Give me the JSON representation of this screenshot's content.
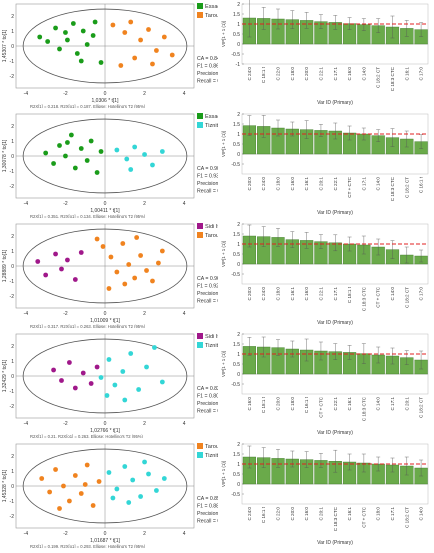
{
  "rows": [
    {
      "score": {
        "legend": [
          {
            "label": "Essaouira",
            "color": "#1a9c1a"
          },
          {
            "label": "Taroudante",
            "color": "#f0831f"
          }
        ],
        "xlabel": "1,0306 * t[1]",
        "ylabel": "1,45307 * to[1]",
        "footer": "R2X[1] = 0,218, R2X[o1] = 0,187, Ellipse: Hotelling's T2 (95%)",
        "metrics": [
          "CA = 0.84",
          "F1 = 0.86",
          "Precision = 0.83",
          "Recall = 0.90"
        ],
        "points": [
          {
            "g": 0,
            "x": -3.3,
            "y": 0.6
          },
          {
            "g": 0,
            "x": -2.9,
            "y": 0.3
          },
          {
            "g": 0,
            "x": -2.5,
            "y": 1.2
          },
          {
            "g": 0,
            "x": -2.3,
            "y": -0.2
          },
          {
            "g": 0,
            "x": -2.0,
            "y": 0.9
          },
          {
            "g": 0,
            "x": -1.9,
            "y": 0.4
          },
          {
            "g": 0,
            "x": -1.6,
            "y": 1.5
          },
          {
            "g": 0,
            "x": -1.4,
            "y": -0.5
          },
          {
            "g": 0,
            "x": -1.1,
            "y": 1.0
          },
          {
            "g": 0,
            "x": -0.9,
            "y": 0.1
          },
          {
            "g": 0,
            "x": -0.5,
            "y": 1.6
          },
          {
            "g": 0,
            "x": -0.2,
            "y": -1.1
          },
          {
            "g": 0,
            "x": -0.6,
            "y": 0.7
          },
          {
            "g": 0,
            "x": -1.2,
            "y": -1.0
          },
          {
            "g": 1,
            "x": 0.4,
            "y": 1.4
          },
          {
            "g": 1,
            "x": 1.0,
            "y": 0.9
          },
          {
            "g": 1,
            "x": 1.3,
            "y": 1.6
          },
          {
            "g": 1,
            "x": 1.8,
            "y": 0.4
          },
          {
            "g": 1,
            "x": 2.2,
            "y": 1.1
          },
          {
            "g": 1,
            "x": 2.6,
            "y": -0.3
          },
          {
            "g": 1,
            "x": 3.0,
            "y": 0.6
          },
          {
            "g": 1,
            "x": 1.5,
            "y": -0.8
          },
          {
            "g": 1,
            "x": 2.4,
            "y": -1.2
          },
          {
            "g": 1,
            "x": 3.4,
            "y": -0.6
          },
          {
            "g": 1,
            "x": 0.8,
            "y": -1.3
          }
        ]
      },
      "vip": {
        "ylabel": "VIP[1 + 1 (1)]",
        "xlabel": "Var ID (Primary)",
        "categories": [
          "C 24:0",
          "C 18:1 t",
          "C 22:0",
          "C 18:0",
          "C 20:0",
          "C 22:1",
          "C 17:1",
          "C 16:0",
          "C 14:0",
          "C 18:2 CT",
          "C 18:3 CTC",
          "C 16:1",
          "C 17:0"
        ],
        "values": [
          1.3,
          1.28,
          1.25,
          1.22,
          1.18,
          1.12,
          1.08,
          1.02,
          0.97,
          0.92,
          0.85,
          0.78,
          0.72
        ],
        "errors": [
          0.95,
          0.55,
          0.5,
          0.45,
          0.4,
          0.35,
          0.35,
          0.3,
          0.3,
          0.35,
          0.55,
          0.4,
          0.35
        ],
        "yticks": [
          "2",
          "1.5",
          "1",
          "0.5",
          "0",
          "-0.5",
          "-1"
        ]
      }
    },
    {
      "score": {
        "legend": [
          {
            "label": "Essaouira",
            "color": "#1a9c1a"
          },
          {
            "label": "Tiznite",
            "color": "#33d6d6"
          }
        ],
        "xlabel": "1,00411 * t[1]",
        "ylabel": "1,30078 * to[1]",
        "footer": "R2X[1] = 0,351, R2X[o1] = 0,134, Ellipse: Hotelling's T2 (95%)",
        "metrics": [
          "CA = 0.90",
          "F1 = 0.93",
          "Precision = 0.91",
          "Recall = 0.95"
        ],
        "points": [
          {
            "g": 0,
            "x": -3.0,
            "y": 0.2
          },
          {
            "g": 0,
            "x": -2.6,
            "y": -0.5
          },
          {
            "g": 0,
            "x": -2.3,
            "y": 0.7
          },
          {
            "g": 0,
            "x": -2.0,
            "y": 0.0
          },
          {
            "g": 0,
            "x": -1.7,
            "y": 1.4
          },
          {
            "g": 0,
            "x": -1.5,
            "y": -0.8
          },
          {
            "g": 0,
            "x": -1.2,
            "y": 0.5
          },
          {
            "g": 0,
            "x": -0.9,
            "y": -0.3
          },
          {
            "g": 0,
            "x": -0.7,
            "y": 1.0
          },
          {
            "g": 0,
            "x": -0.4,
            "y": -1.1
          },
          {
            "g": 0,
            "x": -0.2,
            "y": 0.3
          },
          {
            "g": 0,
            "x": -1.9,
            "y": 0.9
          },
          {
            "g": 1,
            "x": 0.6,
            "y": 0.4
          },
          {
            "g": 1,
            "x": 1.1,
            "y": -0.2
          },
          {
            "g": 1,
            "x": 1.5,
            "y": 0.6
          },
          {
            "g": 1,
            "x": 2.0,
            "y": 0.1
          },
          {
            "g": 1,
            "x": 2.4,
            "y": -0.6
          },
          {
            "g": 1,
            "x": 2.9,
            "y": 0.3
          },
          {
            "g": 1,
            "x": 1.3,
            "y": -0.9
          }
        ]
      },
      "vip": {
        "ylabel": "VIP[1 + 1 (1)]",
        "xlabel": "Var ID (Primary)",
        "categories": [
          "C 20:0",
          "C 24:0",
          "C 18:0",
          "C 16:0",
          "C 16:1",
          "C 20:1",
          "C 22:1",
          "CT + CTC",
          "C 17:1",
          "C 14:0",
          "C 18:3 CTC",
          "C 18:2 CT",
          "C 16:1 t"
        ],
        "values": [
          1.42,
          1.38,
          1.3,
          1.25,
          1.22,
          1.18,
          1.15,
          1.05,
          1.0,
          0.92,
          0.82,
          0.75,
          0.62
        ],
        "errors": [
          0.5,
          0.55,
          0.4,
          0.35,
          0.45,
          0.3,
          0.4,
          0.35,
          0.3,
          0.3,
          0.45,
          0.4,
          0.35
        ],
        "yticks": [
          "2",
          "1.5",
          "1",
          "0.5",
          "0",
          "-0.5"
        ]
      }
    },
    {
      "score": {
        "legend": [
          {
            "label": "Sidi Ifni",
            "color": "#a0188a"
          },
          {
            "label": "Taroudante",
            "color": "#f0831f"
          }
        ],
        "xlabel": "1,01009 * t[1]",
        "ylabel": "1,28889 * to[1]",
        "footer": "R2X[1] = 0,317, R2X[o1] = 0,263, Ellipse: Hotelling's T2 (95%)",
        "metrics": [
          "CA = 0.96",
          "F1 = 0.92",
          "Precision = 1.00",
          "Recall = 0.86"
        ],
        "points": [
          {
            "g": 0,
            "x": -3.4,
            "y": 0.3
          },
          {
            "g": 0,
            "x": -3.0,
            "y": -0.6
          },
          {
            "g": 0,
            "x": -2.5,
            "y": 0.8
          },
          {
            "g": 0,
            "x": -2.2,
            "y": -0.2
          },
          {
            "g": 0,
            "x": -1.9,
            "y": 0.4
          },
          {
            "g": 0,
            "x": -1.5,
            "y": -0.9
          },
          {
            "g": 0,
            "x": -1.2,
            "y": 0.9
          },
          {
            "g": 1,
            "x": -0.4,
            "y": 1.8
          },
          {
            "g": 1,
            "x": -0.1,
            "y": 1.3
          },
          {
            "g": 1,
            "x": 0.3,
            "y": 0.6
          },
          {
            "g": 1,
            "x": 0.6,
            "y": -0.4
          },
          {
            "g": 1,
            "x": 0.9,
            "y": 1.5
          },
          {
            "g": 1,
            "x": 1.2,
            "y": 0.1
          },
          {
            "g": 1,
            "x": 1.5,
            "y": -0.8
          },
          {
            "g": 1,
            "x": 1.8,
            "y": 0.7
          },
          {
            "g": 1,
            "x": 2.1,
            "y": -0.3
          },
          {
            "g": 1,
            "x": 2.4,
            "y": -1.0
          },
          {
            "g": 1,
            "x": 2.7,
            "y": 0.2
          },
          {
            "g": 1,
            "x": 1.0,
            "y": -1.2
          },
          {
            "g": 1,
            "x": 0.2,
            "y": -1.5
          },
          {
            "g": 1,
            "x": 2.9,
            "y": 1.0
          },
          {
            "g": 1,
            "x": 1.6,
            "y": 1.9
          }
        ]
      },
      "vip": {
        "ylabel": "VIP[1 + 1 (1)]",
        "xlabel": "Var ID (Primary)",
        "categories": [
          "C 20:0",
          "C 24:0",
          "C 18:0",
          "C 16:1",
          "C 16:0",
          "C 22:1",
          "C 17:1",
          "C 18:1 t",
          "C 18:3 CTC",
          "CT + CTC",
          "C 14:0",
          "C 18:2 CT",
          "C 17:0"
        ],
        "values": [
          1.4,
          1.37,
          1.33,
          1.22,
          1.18,
          1.12,
          1.06,
          1.0,
          0.95,
          0.85,
          0.72,
          0.45,
          0.4
        ],
        "errors": [
          0.55,
          0.5,
          0.45,
          0.4,
          0.4,
          0.35,
          0.4,
          0.35,
          0.45,
          0.4,
          0.45,
          0.4,
          0.3
        ],
        "yticks": [
          "2",
          "1.5",
          "1",
          "0.5",
          "0",
          "-0.5"
        ]
      }
    },
    {
      "score": {
        "legend": [
          {
            "label": "Sidi Ifni",
            "color": "#a0188a"
          },
          {
            "label": "Tiznite",
            "color": "#33d6d6"
          }
        ],
        "xlabel": "1,02766 * t[1]",
        "ylabel": "1,32429 * to[1]",
        "footer": "R2X[1] = 0,21, R2X[o1] = 0,263, Ellipse: Hotelling's T2 (95%)",
        "metrics": [
          "CA = 0.82",
          "F1 = 0.80",
          "Precision = 0.75",
          "Recall = 0.86"
        ],
        "points": [
          {
            "g": 0,
            "x": -2.6,
            "y": 0.4
          },
          {
            "g": 0,
            "x": -2.2,
            "y": -0.3
          },
          {
            "g": 0,
            "x": -1.8,
            "y": 0.9
          },
          {
            "g": 0,
            "x": -1.5,
            "y": -0.8
          },
          {
            "g": 0,
            "x": -1.1,
            "y": 0.2
          },
          {
            "g": 0,
            "x": -0.7,
            "y": -0.5
          },
          {
            "g": 0,
            "x": -0.4,
            "y": 0.6
          },
          {
            "g": 1,
            "x": -0.2,
            "y": -0.1
          },
          {
            "g": 1,
            "x": 0.2,
            "y": 1.1
          },
          {
            "g": 1,
            "x": 0.5,
            "y": -0.6
          },
          {
            "g": 1,
            "x": 0.9,
            "y": 0.3
          },
          {
            "g": 1,
            "x": 1.3,
            "y": 1.5
          },
          {
            "g": 1,
            "x": 1.7,
            "y": -0.9
          },
          {
            "g": 1,
            "x": 2.1,
            "y": 0.6
          },
          {
            "g": 1,
            "x": 2.5,
            "y": 1.9
          },
          {
            "g": 1,
            "x": 2.9,
            "y": -0.4
          },
          {
            "g": 1,
            "x": 0.1,
            "y": -1.3
          },
          {
            "g": 1,
            "x": 1.0,
            "y": -1.6
          }
        ]
      },
      "vip": {
        "ylabel": "VIP[1 + 1 (1)]",
        "xlabel": "Var ID (Primary)",
        "categories": [
          "C 16:0",
          "C 18:1 t",
          "C 20:0",
          "C 18:0",
          "C 16:1 t",
          "CT + CTC",
          "C 22:1",
          "C 16:1",
          "C 18:3 CTC",
          "C 14:0",
          "C 17:1",
          "C 20:1",
          "C 18:2 CT"
        ],
        "values": [
          1.38,
          1.35,
          1.32,
          1.25,
          1.2,
          1.15,
          1.12,
          1.08,
          1.02,
          0.95,
          0.9,
          0.82,
          0.7
        ],
        "errors": [
          0.45,
          0.5,
          0.4,
          0.4,
          0.55,
          0.45,
          0.4,
          0.35,
          0.5,
          0.4,
          0.4,
          0.35,
          0.45
        ],
        "yticks": [
          "2",
          "1.5",
          "1",
          "0.5",
          "0",
          "-0.5"
        ]
      }
    },
    {
      "score": {
        "legend": [
          {
            "label": "Taroudante",
            "color": "#f0831f"
          },
          {
            "label": "Tiznite",
            "color": "#33d6d6"
          }
        ],
        "xlabel": "1,01687 * t[1]",
        "ylabel": "1,45328 * to[1]",
        "footer": "R2X[1] = 0,199, R2X[o1] = 0,293, Ellipse: Hotelling's T2 (95%)",
        "metrics": [
          "CA = 0.85",
          "F1 = 0.88",
          "Precision = 0.83",
          "Recall = 0.94"
        ],
        "points": [
          {
            "g": 0,
            "x": -3.2,
            "y": 0.5
          },
          {
            "g": 0,
            "x": -2.8,
            "y": -0.4
          },
          {
            "g": 0,
            "x": -2.5,
            "y": 1.1
          },
          {
            "g": 0,
            "x": -2.1,
            "y": 0.0
          },
          {
            "g": 0,
            "x": -1.8,
            "y": -1.0
          },
          {
            "g": 0,
            "x": -1.5,
            "y": 0.7
          },
          {
            "g": 0,
            "x": -1.2,
            "y": -0.5
          },
          {
            "g": 0,
            "x": -0.9,
            "y": 1.4
          },
          {
            "g": 0,
            "x": -0.6,
            "y": -1.3
          },
          {
            "g": 0,
            "x": -0.3,
            "y": 0.3
          },
          {
            "g": 0,
            "x": -2.3,
            "y": -1.5
          },
          {
            "g": 0,
            "x": -1.0,
            "y": 0.1
          },
          {
            "g": 1,
            "x": 0.2,
            "y": 0.9
          },
          {
            "g": 1,
            "x": 0.6,
            "y": -0.2
          },
          {
            "g": 1,
            "x": 1.0,
            "y": 1.3
          },
          {
            "g": 1,
            "x": 1.4,
            "y": 0.4
          },
          {
            "g": 1,
            "x": 1.8,
            "y": -0.7
          },
          {
            "g": 1,
            "x": 2.2,
            "y": 0.8
          },
          {
            "g": 1,
            "x": 2.6,
            "y": -0.3
          },
          {
            "g": 1,
            "x": 3.0,
            "y": 0.5
          },
          {
            "g": 1,
            "x": 1.2,
            "y": -1.1
          },
          {
            "g": 1,
            "x": 0.4,
            "y": -0.8
          },
          {
            "g": 1,
            "x": 2.0,
            "y": 1.6
          }
        ]
      },
      "vip": {
        "ylabel": "VIP[1 + 1 (1)]",
        "xlabel": "Var ID (Primary)",
        "categories": [
          "C 24:0",
          "C 16:1 t",
          "C 22:0",
          "C 20:0",
          "C 16:0",
          "C 20:1",
          "C 18:3 CTC",
          "C 16:1",
          "CT + CTC",
          "C 18:0",
          "C 17:1",
          "C 18:2 CT",
          "C 14:0"
        ],
        "values": [
          1.35,
          1.32,
          1.28,
          1.25,
          1.22,
          1.18,
          1.14,
          1.1,
          1.05,
          1.0,
          0.95,
          0.9,
          0.8
        ],
        "errors": [
          0.55,
          0.5,
          0.45,
          0.4,
          0.4,
          0.35,
          0.55,
          0.4,
          0.45,
          0.35,
          0.35,
          0.45,
          0.4
        ],
        "yticks": [
          "2",
          "1.5",
          "1",
          "0.5",
          "0",
          "-0.5"
        ]
      }
    }
  ],
  "chart_data": [
    {
      "type": "scatter",
      "title": "",
      "xlabel": "1,0306 * t[1]",
      "ylabel": "1,45307 * to[1]",
      "legend": [
        "Essaouira",
        "Taroudante"
      ],
      "legend_position": "top-right"
    },
    {
      "type": "bar",
      "title": "",
      "xlabel": "Var ID (Primary)",
      "ylabel": "VIP[1 + 1 (1)]",
      "reference_line": 1
    },
    {
      "type": "scatter",
      "title": "",
      "xlabel": "1,00411 * t[1]",
      "ylabel": "1,30078 * to[1]",
      "legend": [
        "Essaouira",
        "Tiznite"
      ],
      "legend_position": "top-right"
    },
    {
      "type": "bar",
      "title": "",
      "xlabel": "Var ID (Primary)",
      "ylabel": "VIP[1 + 1 (1)]",
      "reference_line": 1
    },
    {
      "type": "scatter",
      "title": "",
      "xlabel": "1,01009 * t[1]",
      "ylabel": "1,28889 * to[1]",
      "legend": [
        "Sidi Ifni",
        "Taroudante"
      ],
      "legend_position": "top-right"
    },
    {
      "type": "bar",
      "title": "",
      "xlabel": "Var ID (Primary)",
      "ylabel": "VIP[1 + 1 (1)]",
      "reference_line": 1
    },
    {
      "type": "scatter",
      "title": "",
      "xlabel": "1,02766 * t[1]",
      "ylabel": "1,32429 * to[1]",
      "legend": [
        "Sidi Ifni",
        "Tiznite"
      ],
      "legend_position": "top-right"
    },
    {
      "type": "bar",
      "title": "",
      "xlabel": "Var ID (Primary)",
      "ylabel": "VIP[1 + 1 (1)]",
      "reference_line": 1
    },
    {
      "type": "scatter",
      "title": "",
      "xlabel": "1,01687 * t[1]",
      "ylabel": "1,45328 * to[1]",
      "legend": [
        "Taroudante",
        "Tiznite"
      ],
      "legend_position": "top-right"
    },
    {
      "type": "bar",
      "title": "",
      "xlabel": "Var ID (Primary)",
      "ylabel": "VIP[1 + 1 (1)]",
      "reference_line": 1
    }
  ],
  "colors": {
    "bar": "#6aaa4a",
    "bar_stroke": "#3f7a2a",
    "threshold": "#e02020",
    "axis": "#444444",
    "ellipse": "#555555"
  }
}
